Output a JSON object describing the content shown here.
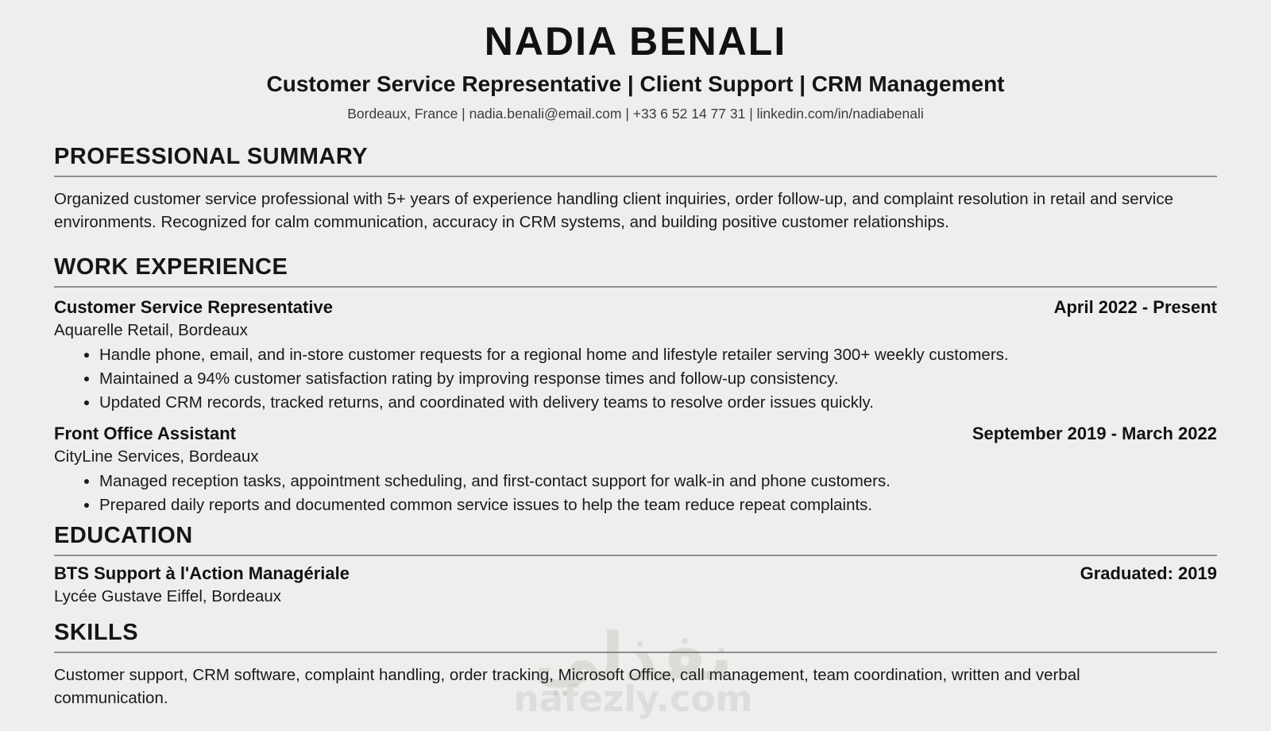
{
  "page": {
    "colors": {
      "background": "#efeeec",
      "text": "#141414",
      "muted_text": "#3c3c3c",
      "rule": "#8f8f8f"
    }
  },
  "header": {
    "name": "NADIA BENALI",
    "title": "Customer Service Representative | Client Support | CRM Management",
    "contact": "Bordeaux, France | nadia.benali@email.com | +33 6 52 14 77 31 | linkedin.com/in/nadiabenali"
  },
  "sections": {
    "summary": {
      "heading": "PROFESSIONAL SUMMARY",
      "text": "Organized customer service professional with 5+ years of experience handling client inquiries, order follow-up, and complaint resolution in retail and service environments. Recognized for calm communication, accuracy in CRM systems, and building positive customer relationships."
    },
    "experience": {
      "heading": "WORK EXPERIENCE",
      "jobs": [
        {
          "title": "Customer Service Representative",
          "dates": "April 2022 - Present",
          "company": "Aquarelle Retail, Bordeaux",
          "bullets": [
            "Handle phone, email, and in-store customer requests for a regional home and lifestyle retailer serving 300+ weekly customers.",
            "Maintained a 94% customer satisfaction rating by improving response times and follow-up consistency.",
            "Updated CRM records, tracked returns, and coordinated with delivery teams to resolve order issues quickly."
          ]
        },
        {
          "title": "Front Office Assistant",
          "dates": "September 2019 - March 2022",
          "company": "CityLine Services, Bordeaux",
          "bullets": [
            "Managed reception tasks, appointment scheduling, and first-contact support for walk-in and phone customers.",
            "Prepared daily reports and documented common service issues to help the team reduce repeat complaints."
          ]
        }
      ]
    },
    "education": {
      "heading": "EDUCATION",
      "degree": "BTS Support à l'Action Managériale",
      "dates": "Graduated: 2019",
      "school": "Lycée Gustave Eiffel, Bordeaux"
    },
    "skills": {
      "heading": "SKILLS",
      "text": "Customer support, CRM software, complaint handling, order tracking, Microsoft Office, call management, team coordination, written and verbal communication."
    }
  },
  "watermark": {
    "arabic": "نفذلي",
    "url": "nafezly.com"
  }
}
